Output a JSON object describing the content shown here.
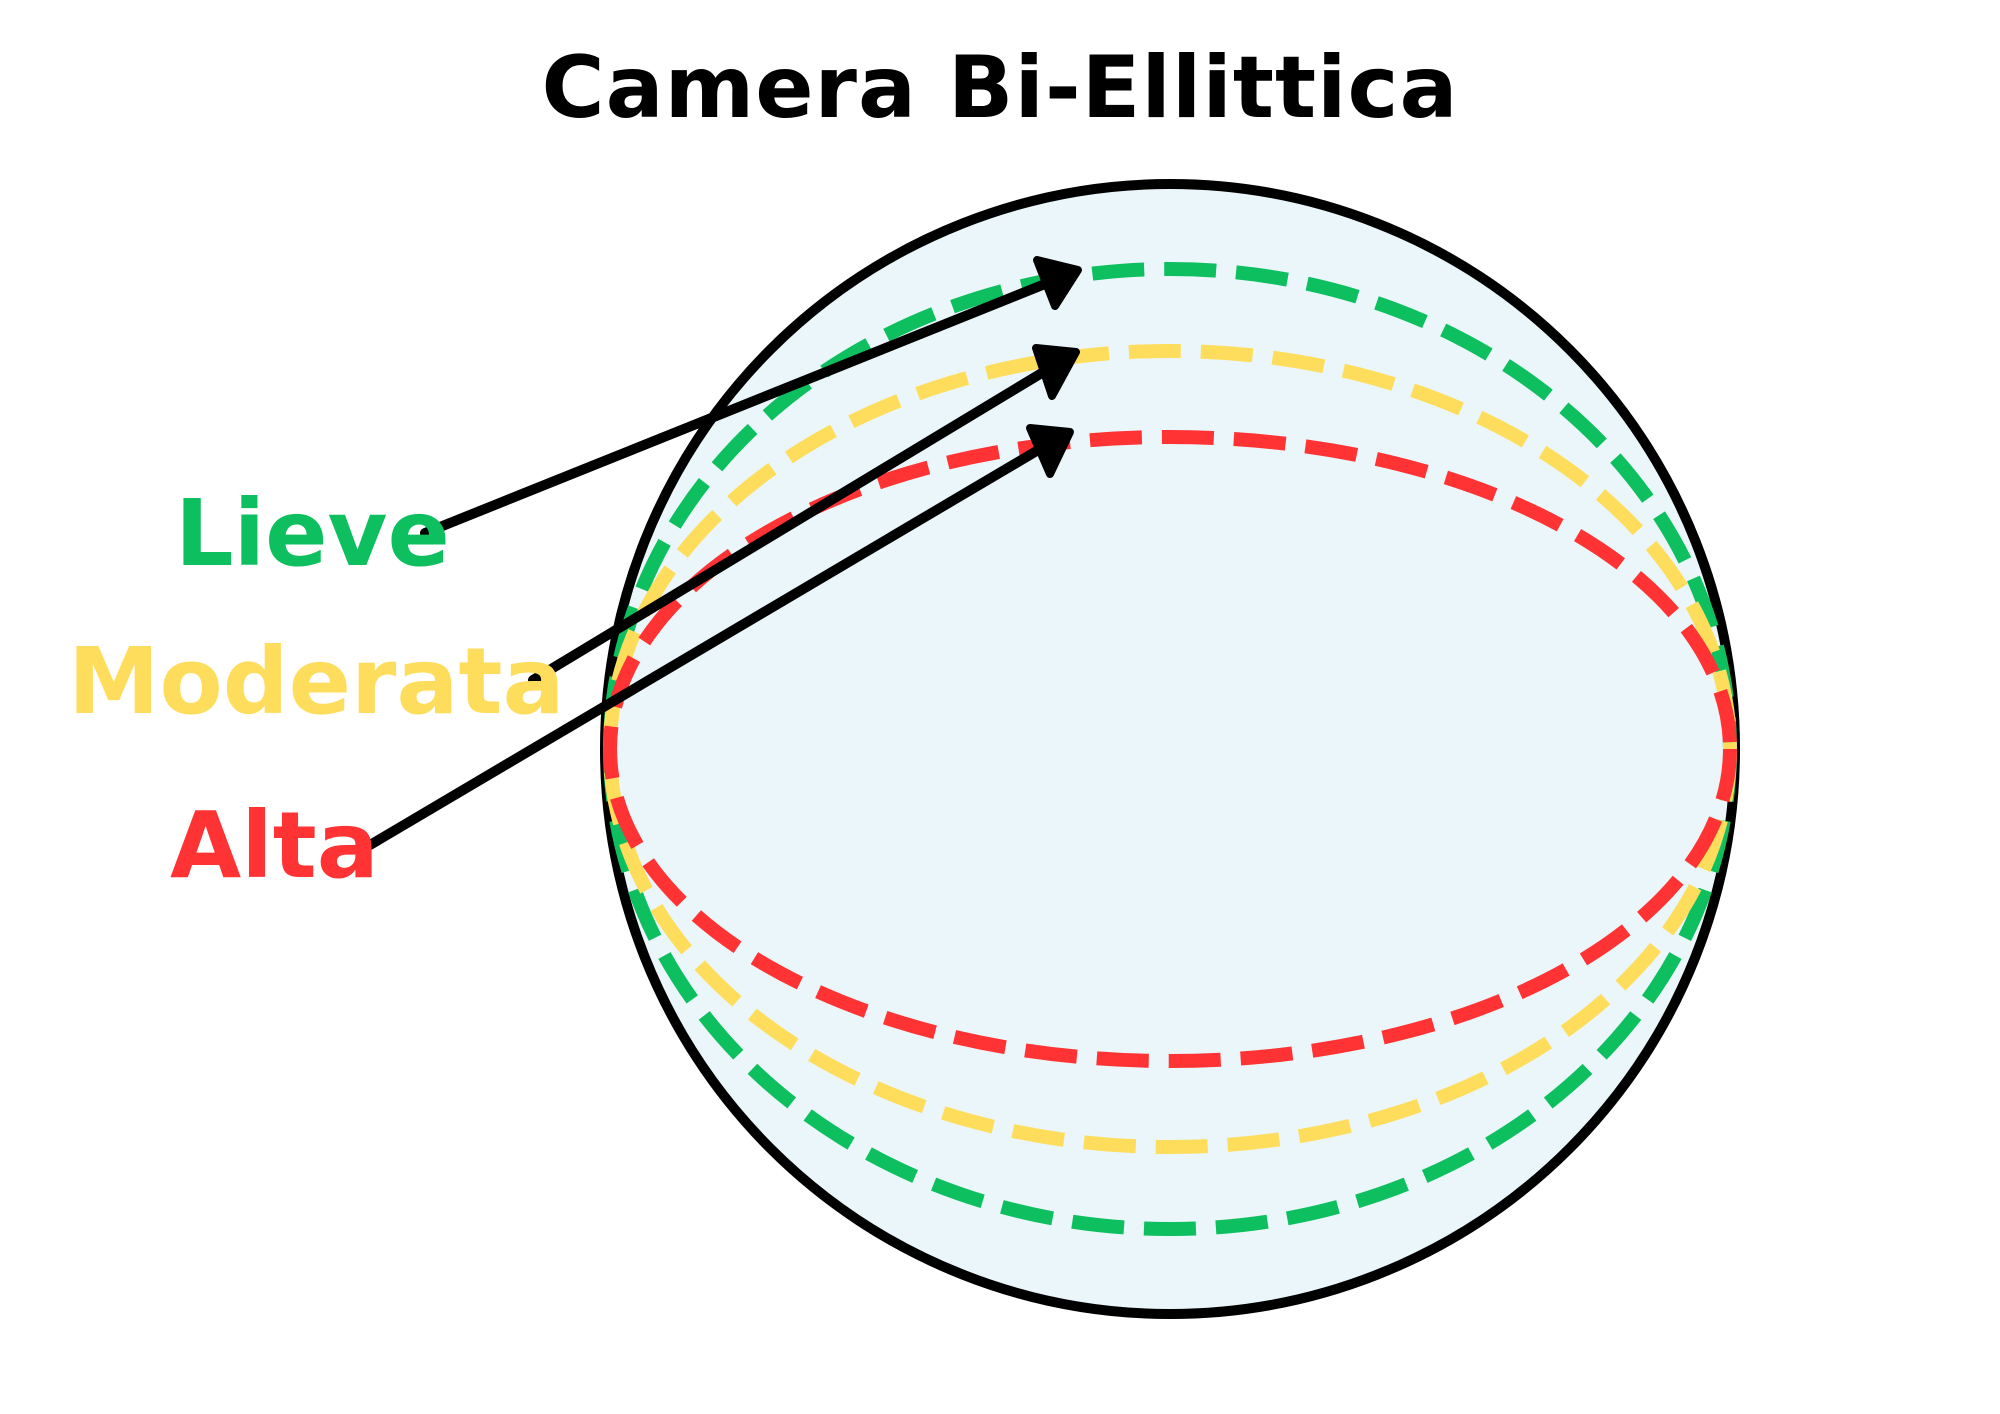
{
  "title": "Camera Bi-Ellittica",
  "levels": [
    {
      "key": "lieve",
      "label": "Lieve",
      "color": "#0DBF5E"
    },
    {
      "key": "moderata",
      "label": "Moderata",
      "color": "#FFDD5C"
    },
    {
      "key": "alta",
      "label": "Alta",
      "color": "#FF3333"
    }
  ],
  "colors": {
    "outline": "#000000",
    "fill": "#EAF6FA",
    "arrow": "#000000"
  }
}
